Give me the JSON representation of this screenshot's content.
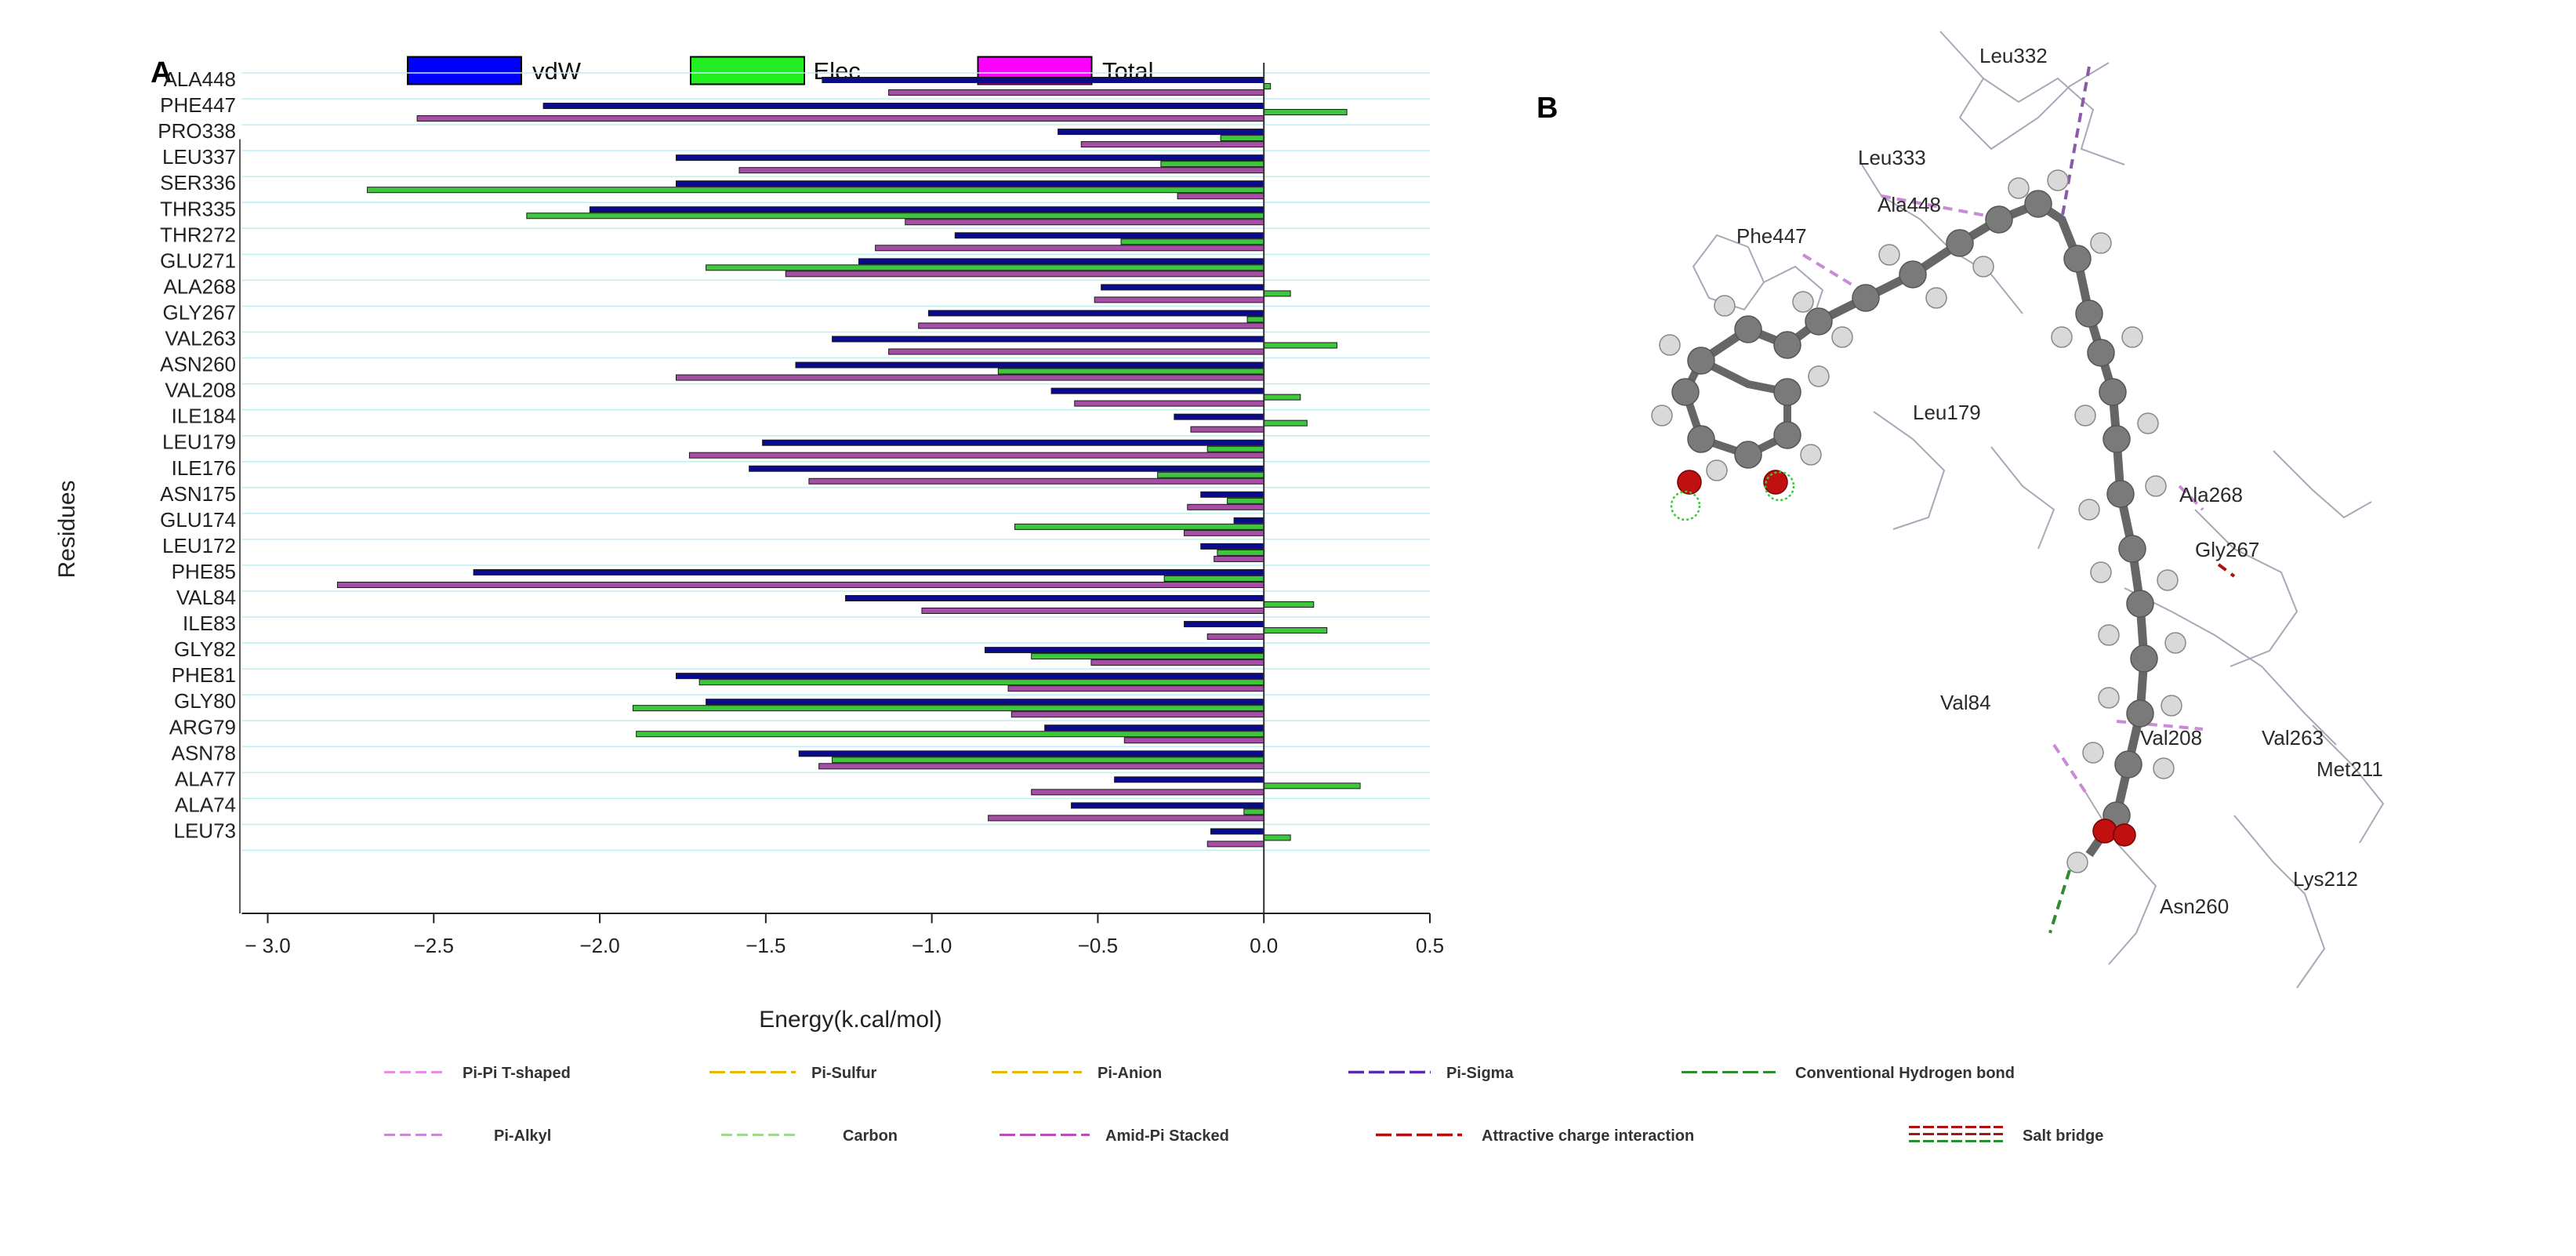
{
  "panel_a_label": "A",
  "panel_b_label": "B",
  "chart_data": {
    "type": "bar",
    "orientation": "horizontal",
    "title": "",
    "xlabel": "Energy(k.cal/mol)",
    "ylabel": "Residues",
    "xlim": [
      -3.0,
      0.5
    ],
    "xticks": [
      -3.0,
      -2.5,
      -2.0,
      -1.5,
      -1.0,
      -0.5,
      0.0,
      0.5
    ],
    "xtick_labels": [
      "− 3.0",
      "−2.5",
      "−2.0",
      "−1.5",
      "−1.0",
      "−0.5",
      "0.0",
      "0.5"
    ],
    "legend_position": "top",
    "categories": [
      "ALA448",
      "PHE447",
      "PRO338",
      "LEU337",
      "SER336",
      "THR335",
      "THR272",
      "GLU271",
      "ALA268",
      "GLY267",
      "VAL263",
      "ASN260",
      "VAL208",
      "ILE184",
      "LEU179",
      "ILE176",
      "ASN175",
      "GLU174",
      "LEU172",
      "PHE85",
      "VAL84",
      "ILE83",
      "GLY82",
      "PHE81",
      "GLY80",
      "ARG79",
      "ASN78",
      "ALA77",
      "ALA74",
      "LEU73"
    ],
    "series": [
      {
        "name": "vdW",
        "color": "#0a0a8c",
        "values": [
          -1.33,
          -2.17,
          -0.62,
          -1.77,
          -1.77,
          -2.03,
          -0.93,
          -1.22,
          -0.49,
          -1.01,
          -1.3,
          -1.41,
          -0.64,
          -0.27,
          -1.51,
          -1.55,
          -0.19,
          -0.09,
          -0.19,
          -2.38,
          -1.26,
          -0.24,
          -0.84,
          -1.77,
          -1.68,
          -0.66,
          -1.4,
          -0.45,
          -0.58,
          -0.16
        ]
      },
      {
        "name": "Elec",
        "color": "#3ec73e",
        "values": [
          0.02,
          0.25,
          -0.13,
          -0.31,
          -2.7,
          -2.22,
          -0.43,
          -1.68,
          0.08,
          -0.05,
          0.22,
          -0.8,
          0.11,
          0.13,
          -0.17,
          -0.32,
          -0.11,
          -0.75,
          -0.14,
          -0.3,
          0.15,
          0.19,
          -0.7,
          -1.7,
          -1.9,
          -1.89,
          -1.3,
          0.29,
          -0.06,
          0.08
        ]
      },
      {
        "name": "Total",
        "color": "#a64ea6",
        "values": [
          -1.13,
          -2.55,
          -0.55,
          -1.58,
          -0.26,
          -1.08,
          -1.17,
          -1.44,
          -0.51,
          -1.04,
          -1.13,
          -1.77,
          -0.57,
          -0.22,
          -1.73,
          -1.37,
          -0.23,
          -0.24,
          -0.15,
          -2.79,
          -1.03,
          -0.17,
          -0.52,
          -0.77,
          -0.76,
          -0.42,
          -1.34,
          -0.7,
          -0.83,
          -0.17
        ]
      }
    ],
    "legend_swatch_colors": {
      "vdW": "#0000ff",
      "Elec": "#22ee22",
      "Total": "#ff00ff"
    }
  },
  "molecule_labels": [
    "Leu332",
    "Leu333",
    "Ala448",
    "Phe447",
    "Leu179",
    "Ala268",
    "Gly267",
    "Val84",
    "Val208",
    "Val263",
    "Met211",
    "Lys212",
    "Asn260"
  ],
  "interaction_legend": [
    {
      "label": "Pi-Pi T-shaped",
      "color": "#e68fe6"
    },
    {
      "label": "Pi-Sulfur",
      "color": "#e6b800"
    },
    {
      "label": "Pi-Anion",
      "color": "#e6b800"
    },
    {
      "label": "Pi-Sigma",
      "color": "#5a2ea8"
    },
    {
      "label": "Conventional Hydrogen bond",
      "color": "#2e8b2e"
    },
    {
      "label": "Pi-Alkyl",
      "color": "#c98ad6"
    },
    {
      "label": "Carbon",
      "color": "#9fd88f"
    },
    {
      "label": "Amid-Pi Stacked",
      "color": "#b84fb8"
    },
    {
      "label": "Attractive charge interaction",
      "color": "#b01010"
    },
    {
      "label": "Salt bridge",
      "color": "#b01010",
      "color2": "#2e8b2e"
    }
  ]
}
